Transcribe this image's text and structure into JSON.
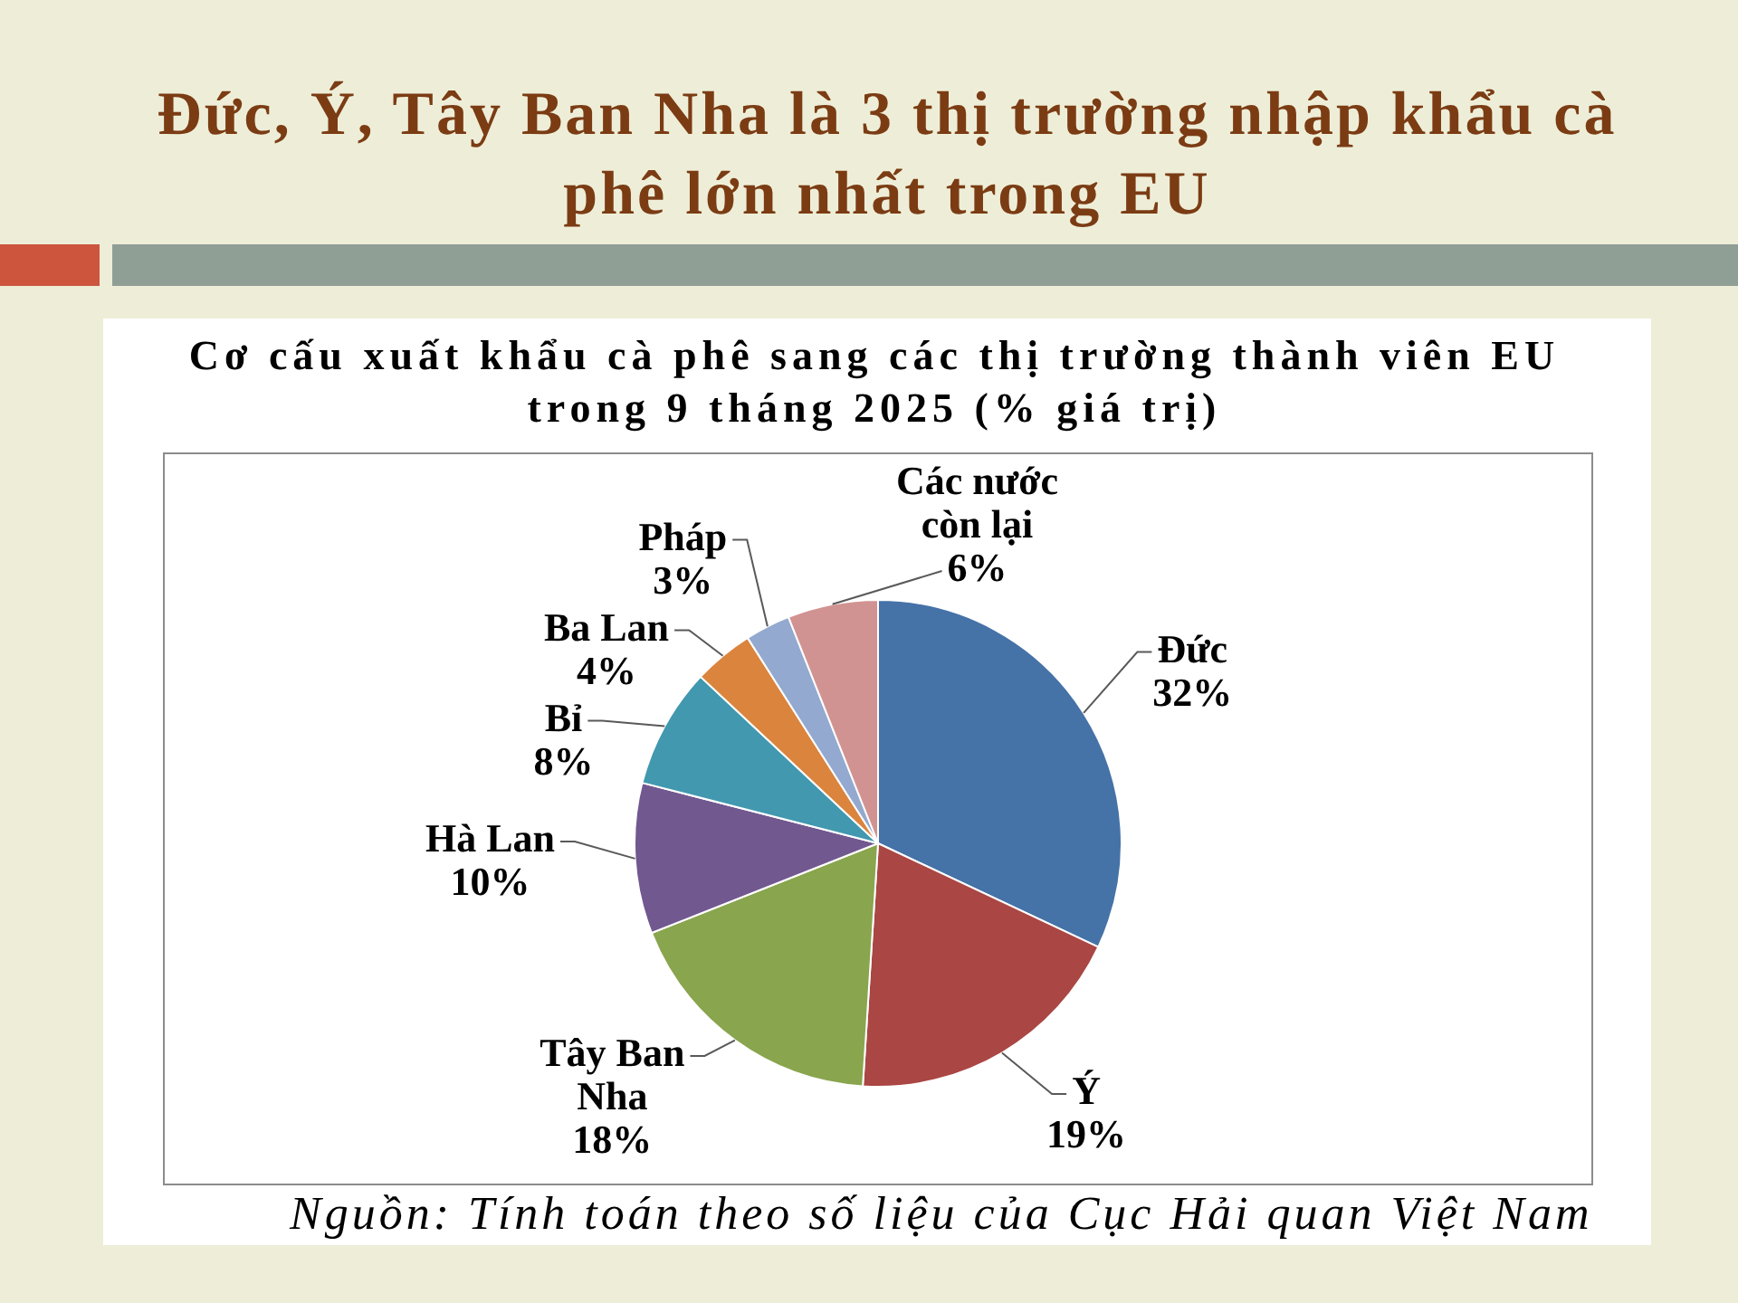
{
  "chart_data": {
    "type": "pie",
    "title": "Đức, Ý, Tây Ban Nha là 3 thị trường nhập khẩu cà phê lớn nhất trong EU",
    "subtitle": "Cơ cấu xuất khẩu cà phê sang các thị trường thành viên EU trong 9 tháng 2025 (% giá trị)",
    "categories": [
      "Đức",
      "Ý",
      "Tây Ban Nha",
      "Hà Lan",
      "Bỉ",
      "Ba Lan",
      "Pháp",
      "Các nước còn lại"
    ],
    "values": [
      32,
      19,
      18,
      10,
      8,
      4,
      3,
      6
    ],
    "colors": [
      "#4572a7",
      "#aa4643",
      "#89a54e",
      "#71588f",
      "#4198af",
      "#db843d",
      "#93a9cf",
      "#d19392"
    ],
    "value_labels": [
      "32%",
      "19%",
      "18%",
      "10%",
      "8%",
      "4%",
      "3%",
      "6%"
    ],
    "annotations": [
      "Nguồn: Tính toán theo số liệu của Cục Hải quan Việt Nam"
    ]
  }
}
